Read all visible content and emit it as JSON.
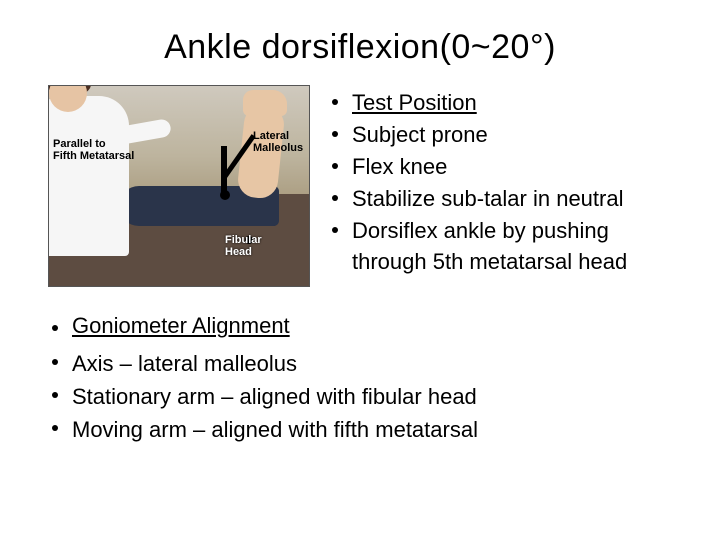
{
  "title": "Ankle dorsiflexion(0~20°)",
  "photo": {
    "labels": {
      "parallel": "Parallel to\nFifth Metatarsal",
      "lateral": "Lateral\nMalleolus",
      "fibular": "Fibular\nHead"
    }
  },
  "right_list": {
    "heading": "Test Position",
    "items": [
      "Subject prone",
      "Flex knee",
      "Stabilize sub-talar in neutral",
      "Dorsiflex ankle by pushing through 5th metatarsal head"
    ]
  },
  "goniometer": {
    "heading": "Goniometer Alignment",
    "items": [
      "Axis – lateral malleolus",
      "Stationary arm – aligned with fibular head",
      "Moving arm – aligned with fifth metatarsal"
    ]
  },
  "colors": {
    "text": "#000000",
    "background": "#ffffff"
  },
  "font": {
    "title_size_pt": 26,
    "body_size_pt": 17
  }
}
